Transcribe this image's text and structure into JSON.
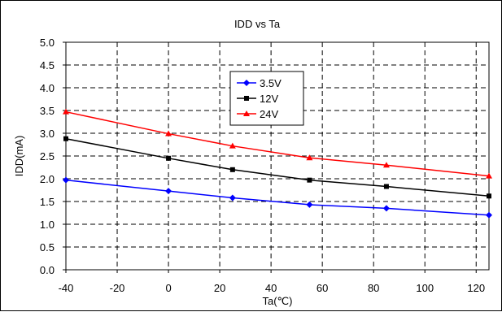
{
  "chart_data": {
    "type": "line",
    "title": "IDD vs Ta",
    "xlabel": "Ta(℃)",
    "ylabel": "IDD(mA)",
    "xlim": [
      -40,
      125
    ],
    "ylim": [
      0.0,
      5.0
    ],
    "xticks": [
      -40,
      -20,
      0,
      20,
      40,
      60,
      80,
      100,
      120
    ],
    "xtick_labels": [
      "-40",
      "-20",
      "0",
      "20",
      "40",
      "60",
      "80",
      "100",
      "120"
    ],
    "yticks": [
      0.0,
      0.5,
      1.0,
      1.5,
      2.0,
      2.5,
      3.0,
      3.5,
      4.0,
      4.5,
      5.0
    ],
    "ytick_labels": [
      "0.0",
      "0.5",
      "1.0",
      "1.5",
      "2.0",
      "2.5",
      "3.0",
      "3.5",
      "4.0",
      "4.5",
      "5.0"
    ],
    "grid": true,
    "grid_style": "dashed",
    "legend_position": "upper-center",
    "x": [
      -40,
      0,
      25,
      55,
      85,
      125
    ],
    "series": [
      {
        "name": "3.5V",
        "color": "#0000ff",
        "marker": "diamond",
        "values": [
          1.97,
          1.73,
          1.58,
          1.43,
          1.35,
          1.2
        ]
      },
      {
        "name": "12V",
        "color": "#000000",
        "marker": "square",
        "values": [
          2.88,
          2.45,
          2.2,
          1.97,
          1.83,
          1.62
        ]
      },
      {
        "name": "24V",
        "color": "#ff0000",
        "marker": "triangle",
        "values": [
          3.47,
          2.99,
          2.72,
          2.46,
          2.3,
          2.06
        ]
      }
    ]
  }
}
